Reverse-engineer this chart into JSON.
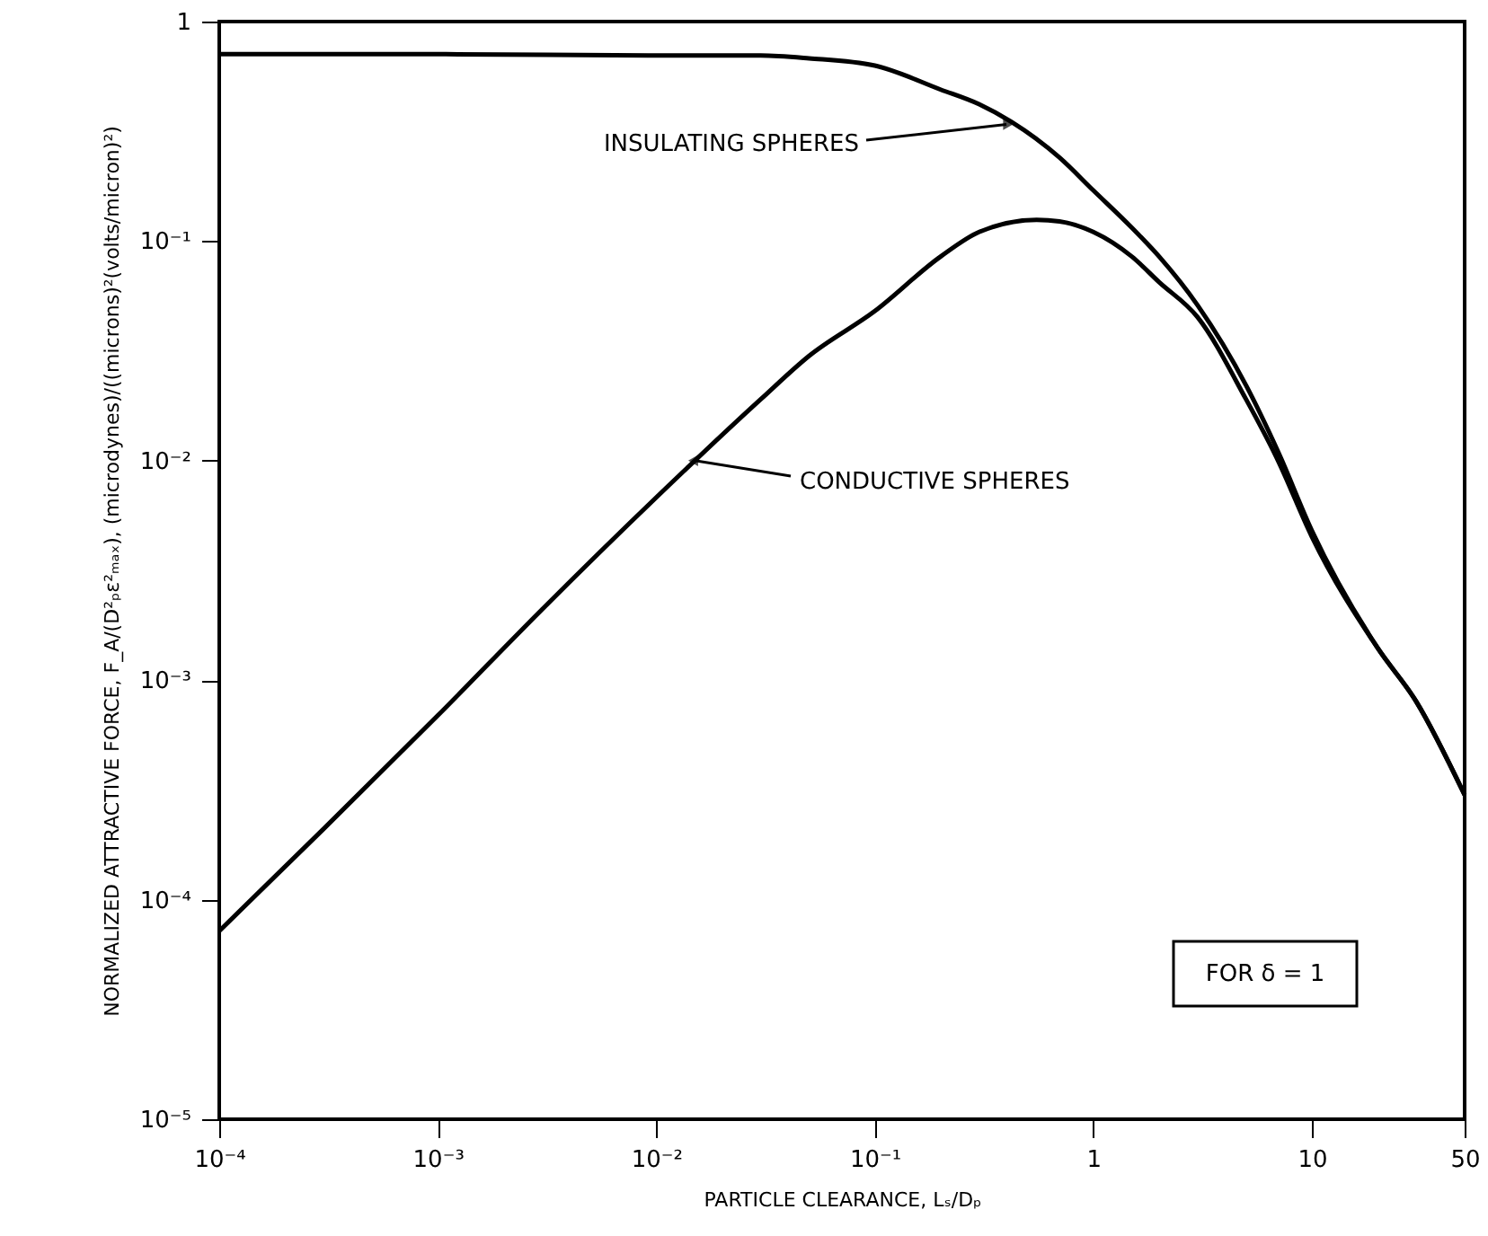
{
  "chart_data": {
    "type": "line",
    "xlabel": "PARTICLE CLEARANCE, Lₛ/Dₚ",
    "ylabel": "NORMALIZED ATTRACTIVE FORCE, F_A/(D²ₚε²ₘₐₓ), (microdynes)/((microns)²(volts/micron)²)",
    "series": [
      {
        "color": "#000000",
        "x": [
          0.0001,
          0.001,
          0.01,
          0.03,
          0.05,
          0.1,
          0.2,
          0.3,
          0.42,
          0.7,
          1,
          1.5,
          2,
          3,
          5,
          7,
          10,
          20,
          30,
          50
        ],
        "values": [
          0.71,
          0.71,
          0.7,
          0.7,
          0.68,
          0.63,
          0.49,
          0.42,
          0.35,
          0.24,
          0.17,
          0.115,
          0.085,
          0.051,
          0.022,
          0.011,
          0.0048,
          0.0014,
          0.0008,
          0.0003
        ]
      },
      {
        "color": "#000000",
        "x": [
          0.0001,
          0.0003,
          0.001,
          0.003,
          0.01,
          0.03,
          0.05,
          0.1,
          0.2,
          0.3,
          0.55,
          0.7,
          1,
          1.5,
          2,
          3,
          5,
          7,
          10,
          20,
          30,
          50
        ],
        "values": [
          7.2e-05,
          0.00021,
          0.00069,
          0.0021,
          0.0068,
          0.019,
          0.03,
          0.048,
          0.085,
          0.11,
          0.125,
          0.123,
          0.11,
          0.085,
          0.065,
          0.045,
          0.019,
          0.01,
          0.0045,
          0.0014,
          0.0008,
          0.0003
        ]
      }
    ],
    "xlim": [
      0.0001,
      50
    ],
    "ylim": [
      1e-05,
      1
    ],
    "xticks": [
      {
        "value": 0.0001,
        "label": "10⁻⁴"
      },
      {
        "value": 0.001,
        "label": "10⁻³"
      },
      {
        "value": 0.01,
        "label": "10⁻²"
      },
      {
        "value": 0.1,
        "label": "10⁻¹"
      },
      1,
      10,
      50
    ],
    "yticks": [
      {
        "value": 1e-05,
        "label": "10⁻⁵"
      },
      {
        "value": 0.0001,
        "label": "10⁻⁴"
      },
      {
        "value": 0.001,
        "label": "10⁻³"
      },
      {
        "value": 0.01,
        "label": "10⁻²"
      },
      {
        "value": 0.1,
        "label": "10⁻¹"
      },
      1
    ],
    "log": "xy",
    "grid": false,
    "marker": "none",
    "line_style": "solid",
    "annotations": [
      {
        "text": "INSULATING SPHERES",
        "x": 0.4,
        "y": 0.34
      },
      {
        "text": "CONDUCTIVE SPHERES",
        "x": 0.015,
        "y": 0.01
      },
      "FOR δ = 1"
    ]
  }
}
